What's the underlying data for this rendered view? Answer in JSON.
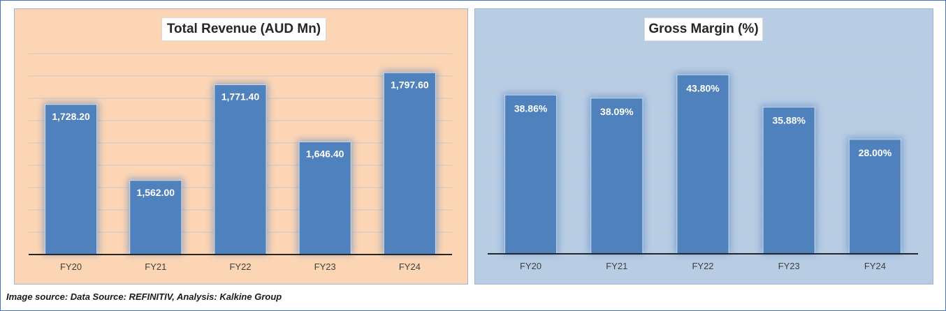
{
  "chart_data": [
    {
      "type": "bar",
      "title": "Total Revenue (AUD Mn)",
      "categories": [
        "FY20",
        "FY21",
        "FY22",
        "FY23",
        "FY24"
      ],
      "values": [
        1728.2,
        1562.0,
        1771.4,
        1646.4,
        1797.6
      ],
      "data_labels": [
        "1,728.20",
        "1,562.00",
        "1,771.40",
        "1,646.40",
        "1,797.60"
      ],
      "ylim": [
        1400,
        1850
      ],
      "grid": true,
      "bar_color": "#4f81bd",
      "background_color": "#fcd5b5"
    },
    {
      "type": "bar",
      "title": "Gross Margin (%)",
      "categories": [
        "FY20",
        "FY21",
        "FY22",
        "FY23",
        "FY24"
      ],
      "values": [
        38.86,
        38.09,
        43.8,
        35.88,
        28.0
      ],
      "data_labels": [
        "38.86%",
        "38.09%",
        "43.80%",
        "35.88%",
        "28.00%"
      ],
      "ylim": [
        0,
        50
      ],
      "grid": true,
      "bar_color": "#4f81bd",
      "background_color": "#b8cce4"
    }
  ],
  "source_text": "Image source: Data Source: REFINITIV, Analysis: Kalkine Group"
}
